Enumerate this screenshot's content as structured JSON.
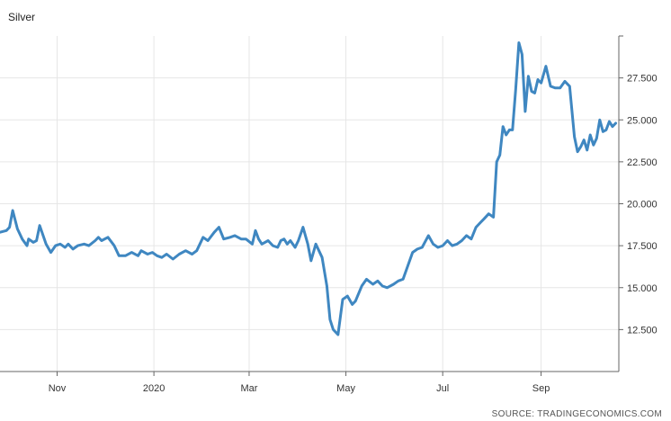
{
  "chart_data": {
    "type": "line",
    "title": "Silver",
    "xlabel": "",
    "ylabel": "",
    "source": "SOURCE: TRADINGECONOMICS.COM",
    "x_ticks": [
      {
        "label": "Nov",
        "date": "2019-11-01"
      },
      {
        "label": "2020",
        "date": "2020-01-01"
      },
      {
        "label": "Mar",
        "date": "2020-03-01"
      },
      {
        "label": "May",
        "date": "2020-05-01"
      },
      {
        "label": "Jul",
        "date": "2020-07-01"
      },
      {
        "label": "Sep",
        "date": "2020-09-01"
      }
    ],
    "y_ticks": [
      "12.500",
      "15.000",
      "17.500",
      "20.000",
      "22.500",
      "25.000",
      "27.500"
    ],
    "y_tick_values": [
      12.5,
      15,
      17.5,
      20,
      22.5,
      25,
      27.5
    ],
    "ylim": [
      10.0,
      30.0
    ],
    "xlim": [
      "2019-09-26",
      "2020-10-20"
    ],
    "grid": true,
    "line_color": "#3f87c1",
    "series": [
      {
        "values": [
          [
            "2019-09-26",
            18.3
          ],
          [
            "2019-09-30",
            18.4
          ],
          [
            "2019-10-02",
            18.6
          ],
          [
            "2019-10-04",
            19.6
          ],
          [
            "2019-10-07",
            18.5
          ],
          [
            "2019-10-10",
            17.9
          ],
          [
            "2019-10-13",
            17.5
          ],
          [
            "2019-10-14",
            17.9
          ],
          [
            "2019-10-17",
            17.7
          ],
          [
            "2019-10-19",
            17.8
          ],
          [
            "2019-10-21",
            18.7
          ],
          [
            "2019-10-25",
            17.6
          ],
          [
            "2019-10-28",
            17.1
          ],
          [
            "2019-10-31",
            17.5
          ],
          [
            "2019-11-03",
            17.6
          ],
          [
            "2019-11-06",
            17.4
          ],
          [
            "2019-11-08",
            17.6
          ],
          [
            "2019-11-11",
            17.3
          ],
          [
            "2019-11-14",
            17.5
          ],
          [
            "2019-11-18",
            17.6
          ],
          [
            "2019-11-21",
            17.5
          ],
          [
            "2019-11-25",
            17.8
          ],
          [
            "2019-11-27",
            18.0
          ],
          [
            "2019-11-29",
            17.8
          ],
          [
            "2019-12-03",
            18.0
          ],
          [
            "2019-12-07",
            17.5
          ],
          [
            "2019-12-10",
            16.9
          ],
          [
            "2019-12-14",
            16.9
          ],
          [
            "2019-12-18",
            17.1
          ],
          [
            "2019-12-22",
            16.9
          ],
          [
            "2019-12-24",
            17.2
          ],
          [
            "2019-12-28",
            17.0
          ],
          [
            "2019-12-31",
            17.1
          ],
          [
            "2020-01-03",
            16.9
          ],
          [
            "2020-01-06",
            16.8
          ],
          [
            "2020-01-09",
            17.0
          ],
          [
            "2020-01-13",
            16.7
          ],
          [
            "2020-01-17",
            17.0
          ],
          [
            "2020-01-21",
            17.2
          ],
          [
            "2020-01-25",
            17.0
          ],
          [
            "2020-01-28",
            17.2
          ],
          [
            "2020-02-01",
            18.0
          ],
          [
            "2020-02-04",
            17.8
          ],
          [
            "2020-02-08",
            18.3
          ],
          [
            "2020-02-11",
            18.6
          ],
          [
            "2020-02-14",
            17.9
          ],
          [
            "2020-02-18",
            18.0
          ],
          [
            "2020-02-21",
            18.1
          ],
          [
            "2020-02-25",
            17.9
          ],
          [
            "2020-02-28",
            17.9
          ],
          [
            "2020-03-03",
            17.6
          ],
          [
            "2020-03-05",
            18.4
          ],
          [
            "2020-03-07",
            17.9
          ],
          [
            "2020-03-09",
            17.6
          ],
          [
            "2020-03-11",
            17.7
          ],
          [
            "2020-03-13",
            17.8
          ],
          [
            "2020-03-16",
            17.5
          ],
          [
            "2020-03-19",
            17.4
          ],
          [
            "2020-03-21",
            17.8
          ],
          [
            "2020-03-23",
            17.9
          ],
          [
            "2020-03-25",
            17.6
          ],
          [
            "2020-03-27",
            17.8
          ],
          [
            "2020-03-30",
            17.4
          ],
          [
            "2020-04-01",
            17.8
          ],
          [
            "2020-04-04",
            18.6
          ],
          [
            "2020-04-07",
            17.6
          ],
          [
            "2020-04-09",
            16.6
          ],
          [
            "2020-04-12",
            17.6
          ],
          [
            "2020-04-16",
            16.8
          ],
          [
            "2020-04-19",
            15.1
          ],
          [
            "2020-04-21",
            13.1
          ],
          [
            "2020-04-23",
            12.5
          ],
          [
            "2020-04-26",
            12.2
          ],
          [
            "2020-04-29",
            14.3
          ],
          [
            "2020-05-02",
            14.5
          ],
          [
            "2020-05-05",
            14.0
          ],
          [
            "2020-05-07",
            14.2
          ],
          [
            "2020-05-11",
            15.1
          ],
          [
            "2020-05-14",
            15.5
          ],
          [
            "2020-05-18",
            15.2
          ],
          [
            "2020-05-21",
            15.4
          ],
          [
            "2020-05-24",
            15.1
          ],
          [
            "2020-05-27",
            15.0
          ],
          [
            "2020-05-31",
            15.2
          ],
          [
            "2020-06-03",
            15.4
          ],
          [
            "2020-06-06",
            15.5
          ],
          [
            "2020-06-09",
            16.3
          ],
          [
            "2020-06-12",
            17.1
          ],
          [
            "2020-06-15",
            17.3
          ],
          [
            "2020-06-18",
            17.4
          ],
          [
            "2020-06-22",
            18.1
          ],
          [
            "2020-06-25",
            17.6
          ],
          [
            "2020-06-28",
            17.4
          ],
          [
            "2020-07-01",
            17.5
          ],
          [
            "2020-07-04",
            17.8
          ],
          [
            "2020-07-07",
            17.5
          ],
          [
            "2020-07-10",
            17.6
          ],
          [
            "2020-07-13",
            17.8
          ],
          [
            "2020-07-16",
            18.1
          ],
          [
            "2020-07-19",
            17.9
          ],
          [
            "2020-07-22",
            18.6
          ],
          [
            "2020-07-25",
            18.9
          ],
          [
            "2020-07-27",
            19.1
          ],
          [
            "2020-07-30",
            19.4
          ],
          [
            "2020-08-02",
            19.2
          ],
          [
            "2020-08-04",
            22.5
          ],
          [
            "2020-08-06",
            22.9
          ],
          [
            "2020-08-08",
            24.6
          ],
          [
            "2020-08-10",
            24.1
          ],
          [
            "2020-08-12",
            24.4
          ],
          [
            "2020-08-14",
            24.4
          ],
          [
            "2020-08-16",
            26.8
          ],
          [
            "2020-08-18",
            29.6
          ],
          [
            "2020-08-20",
            28.9
          ],
          [
            "2020-08-22",
            25.5
          ],
          [
            "2020-08-24",
            27.6
          ],
          [
            "2020-08-26",
            26.7
          ],
          [
            "2020-08-28",
            26.6
          ],
          [
            "2020-08-30",
            27.4
          ],
          [
            "2020-09-01",
            27.2
          ],
          [
            "2020-09-04",
            28.2
          ],
          [
            "2020-09-07",
            27.0
          ],
          [
            "2020-09-10",
            26.9
          ],
          [
            "2020-09-13",
            26.9
          ],
          [
            "2020-09-16",
            27.3
          ],
          [
            "2020-09-19",
            27.0
          ],
          [
            "2020-09-22",
            24.0
          ],
          [
            "2020-09-24",
            23.1
          ],
          [
            "2020-09-26",
            23.4
          ],
          [
            "2020-09-28",
            23.8
          ],
          [
            "2020-09-30",
            23.2
          ],
          [
            "2020-10-02",
            24.1
          ],
          [
            "2020-10-04",
            23.5
          ],
          [
            "2020-10-06",
            23.9
          ],
          [
            "2020-10-08",
            25.0
          ],
          [
            "2020-10-10",
            24.3
          ],
          [
            "2020-10-12",
            24.4
          ],
          [
            "2020-10-14",
            24.9
          ],
          [
            "2020-10-16",
            24.6
          ],
          [
            "2020-10-18",
            24.8
          ]
        ]
      }
    ]
  }
}
